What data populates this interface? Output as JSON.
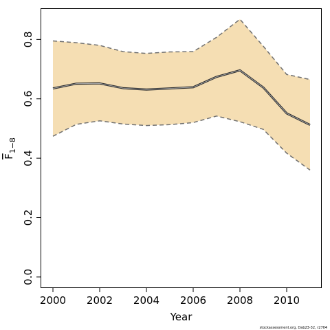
{
  "chart_data": {
    "type": "area",
    "xlabel": "Year",
    "ylabel": {
      "main": "F",
      "subscript": "1−8"
    },
    "xlim": [
      1999.5,
      2011.5
    ],
    "ylim": [
      -0.035,
      0.905
    ],
    "x_ticks": [
      2000,
      2002,
      2004,
      2006,
      2008,
      2010
    ],
    "y_ticks": [
      0.0,
      0.2,
      0.4,
      0.6,
      0.8
    ],
    "x_tick_labels": [
      "2000",
      "2002",
      "2004",
      "2006",
      "2008",
      "2010"
    ],
    "y_tick_labels": [
      "0.0",
      "0.2",
      "0.4",
      "0.6",
      "0.8"
    ],
    "x": [
      2000,
      2001,
      2002,
      2003,
      2004,
      2005,
      2006,
      2007,
      2008,
      2009,
      2010,
      2011
    ],
    "estimate": [
      0.635,
      0.651,
      0.652,
      0.636,
      0.631,
      0.635,
      0.639,
      0.674,
      0.696,
      0.638,
      0.551,
      0.512
    ],
    "upper": [
      0.795,
      0.789,
      0.78,
      0.759,
      0.753,
      0.758,
      0.759,
      0.807,
      0.868,
      0.777,
      0.682,
      0.665
    ],
    "lower": [
      0.474,
      0.514,
      0.526,
      0.515,
      0.51,
      0.513,
      0.52,
      0.542,
      0.523,
      0.497,
      0.417,
      0.36
    ],
    "band_color": "#F5DEB3",
    "line_color": "#333333",
    "bound_color": "#707070",
    "grid": false,
    "legend": "none"
  },
  "footer": {
    "credit": "stockassessment.org,  Dab23-32,  r2704"
  }
}
